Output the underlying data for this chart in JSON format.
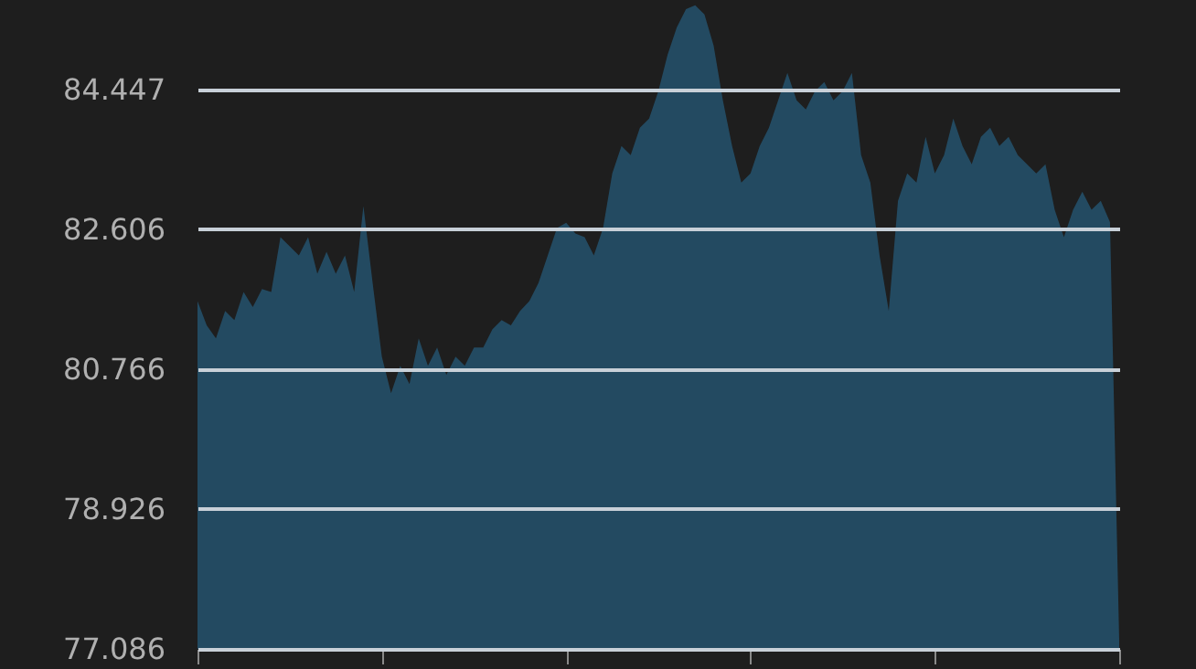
{
  "chart_data": {
    "type": "area",
    "categories": [
      null,
      null,
      null,
      null,
      null,
      null,
      null,
      null,
      null,
      null,
      null,
      null,
      null,
      null,
      null,
      null,
      null,
      null,
      null,
      null,
      null,
      null,
      null,
      null,
      null,
      null,
      null,
      null,
      null,
      null,
      null,
      null,
      null,
      null,
      null,
      null,
      null,
      null,
      null,
      null,
      null,
      null,
      null,
      null,
      null,
      null,
      null,
      null,
      null,
      null,
      null,
      null,
      null,
      null,
      null,
      null,
      null,
      null,
      null,
      null,
      null,
      null,
      null,
      null,
      null,
      null,
      null,
      null,
      null,
      null,
      null,
      null,
      null,
      null,
      null,
      null,
      null,
      null,
      null,
      null,
      null,
      null,
      null,
      null,
      null,
      null,
      null,
      null,
      null,
      null,
      null,
      null,
      null,
      null,
      null,
      null,
      null,
      null,
      null,
      null,
      null
    ],
    "series": [
      {
        "color": "#2f9fe0",
        "values": [
          81.66,
          81.34,
          81.17,
          81.53,
          81.41,
          81.78,
          81.58,
          81.82,
          81.78,
          82.5,
          82.38,
          82.26,
          82.5,
          82.02,
          82.31,
          82.02,
          82.26,
          81.78,
          82.91,
          81.9,
          80.93,
          80.45,
          80.81,
          80.57,
          81.17,
          80.81,
          81.05,
          80.69,
          80.93,
          80.81,
          81.05,
          81.05,
          81.29,
          81.41,
          81.34,
          81.53,
          81.66,
          81.9,
          82.26,
          82.62,
          82.69,
          82.55,
          82.5,
          82.26,
          82.62,
          83.34,
          83.7,
          83.58,
          83.94,
          84.06,
          84.42,
          84.9,
          85.26,
          85.5,
          85.55,
          85.43,
          85.02,
          84.3,
          83.7,
          83.22,
          83.34,
          83.7,
          83.94,
          84.3,
          84.66,
          84.3,
          84.18,
          84.42,
          84.54,
          84.3,
          84.42,
          84.66,
          83.58,
          83.22,
          82.26,
          81.53,
          82.98,
          83.34,
          83.22,
          83.82,
          83.34,
          83.58,
          84.06,
          83.7,
          83.46,
          83.82,
          83.94,
          83.7,
          83.82,
          83.58,
          83.46,
          83.34,
          83.46,
          82.86,
          82.5,
          82.86,
          83.1,
          82.86,
          82.98,
          82.7,
          77.2
        ]
      }
    ],
    "ylim": [
      77.086,
      85.62
    ],
    "yticks": [
      77.086,
      78.926,
      80.766,
      82.606,
      84.447
    ],
    "grid": "y",
    "tick_labels": "y"
  }
}
